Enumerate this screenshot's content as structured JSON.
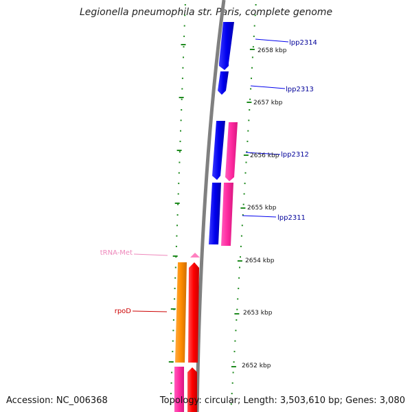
{
  "title": "Legionella pneumophila str. Paris, complete genome",
  "accession": "Accession: NC_006368",
  "topology": "Topology: circular; Length: 3,503,610 bp; Genes: 3,080",
  "colors": {
    "backbone": "#808080",
    "ruler": "#1e8a1e",
    "cds_forward": "#0000ee",
    "cds_reverse": "#ff2aa0",
    "gene": "#ff0000",
    "rrna": "#ff8c00",
    "trna": "#ff80c0",
    "label_cds": "#000099",
    "label_gene": "#cc0000",
    "label_trna": "#ee88bb"
  },
  "ruler_ticks": [
    {
      "label": "2658 kbp"
    },
    {
      "label": "2657 kbp"
    },
    {
      "label": "2656 kbp"
    },
    {
      "label": "2655 kbp"
    },
    {
      "label": "2654 kbp"
    },
    {
      "label": "2653 kbp"
    },
    {
      "label": "2652 kbp"
    }
  ],
  "features": [
    {
      "label": "lpp2314",
      "type": "cds_forward"
    },
    {
      "label": "lpp2313",
      "type": "cds_forward"
    },
    {
      "label": "lpp2312",
      "type": "cds_forward"
    },
    {
      "label": "lpp2311",
      "type": "cds_forward"
    },
    {
      "label": "tRNA-Met",
      "type": "trna"
    },
    {
      "label": "rpoD",
      "type": "gene"
    }
  ]
}
